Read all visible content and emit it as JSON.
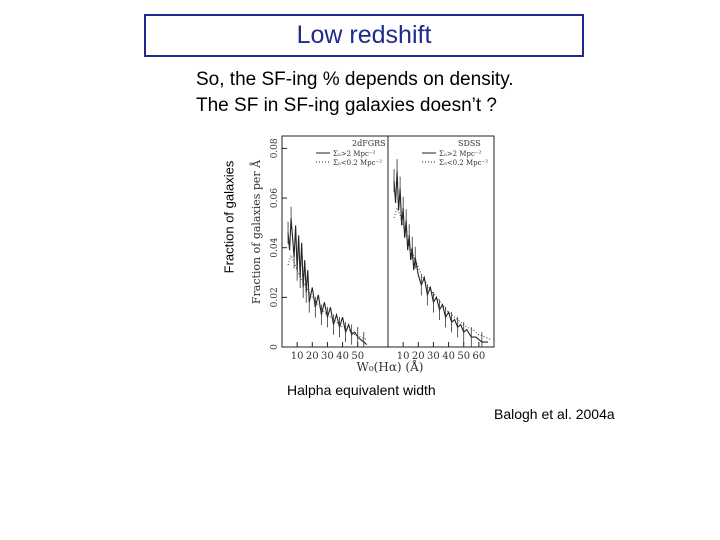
{
  "slide": {
    "title": "Low redshift",
    "subtitle_line1": "So, the SF-ing % depends on density.",
    "subtitle_line2": "The SF in SF-ing galaxies doesn’t ?",
    "y_axis_label": "Fraction of galaxies",
    "x_axis_label": "Halpha equivalent width",
    "citation": "Balogh et al. 2004a",
    "title_color": "#1e2a8c"
  },
  "chart_data": [
    {
      "type": "line",
      "title": "2dFGRS",
      "xlabel": "W₀(Hα) (Å)",
      "ylabel": "Fraction of galaxies per Å",
      "xlim": [
        0,
        70
      ],
      "ylim": [
        0,
        0.085
      ],
      "x_ticks": [
        10,
        20,
        30,
        40,
        50
      ],
      "y_ticks": [
        0,
        0.02,
        0.04,
        0.06,
        0.08
      ],
      "y_tick_labels": [
        "0",
        "0.02",
        "0.04",
        "0.06",
        "0.08"
      ],
      "legend": [
        "Σ₅>2 Mpc⁻²",
        "Σ₅<0.2 Mpc⁻²"
      ],
      "legend_position": "top",
      "series": [
        {
          "name": "Σ₅>2 Mpc⁻²",
          "style": "solid",
          "x": [
            4,
            5,
            6,
            7,
            8,
            9,
            10,
            11,
            12,
            13,
            14,
            15,
            16,
            17,
            18,
            20,
            22,
            24,
            26,
            28,
            30,
            32,
            34,
            36,
            38,
            40,
            42,
            44,
            46,
            48,
            50,
            52,
            54,
            56
          ],
          "y": [
            0.046,
            0.039,
            0.052,
            0.044,
            0.036,
            0.049,
            0.031,
            0.045,
            0.028,
            0.042,
            0.024,
            0.035,
            0.022,
            0.031,
            0.018,
            0.024,
            0.016,
            0.021,
            0.013,
            0.018,
            0.012,
            0.016,
            0.009,
            0.013,
            0.008,
            0.012,
            0.006,
            0.009,
            0.005,
            0.006,
            0.004,
            0.003,
            0.002,
            0.001
          ]
        },
        {
          "name": "Σ₅<0.2 Mpc⁻²",
          "style": "dotted",
          "x": [
            4,
            6,
            8,
            10,
            12,
            14,
            16,
            18,
            20,
            24,
            28,
            32,
            36,
            40,
            44,
            48,
            52,
            56
          ],
          "y": [
            0.033,
            0.037,
            0.034,
            0.031,
            0.028,
            0.026,
            0.024,
            0.022,
            0.02,
            0.017,
            0.014,
            0.012,
            0.01,
            0.008,
            0.007,
            0.005,
            0.004,
            0.003
          ]
        }
      ]
    },
    {
      "type": "line",
      "title": "SDSS",
      "xlabel": "W₀(Hα) (Å)",
      "xlim": [
        0,
        70
      ],
      "ylim": [
        0,
        0.085
      ],
      "x_ticks": [
        10,
        20,
        30,
        40,
        50,
        60
      ],
      "legend": [
        "Σ₅>2 Mpc⁻²",
        "Σ₅<0.2 Mpc⁻²"
      ],
      "legend_position": "top",
      "series": [
        {
          "name": "Σ₅>2 Mpc⁻²",
          "style": "solid",
          "x": [
            4,
            5,
            6,
            7,
            8,
            9,
            10,
            11,
            12,
            13,
            14,
            15,
            16,
            17,
            18,
            20,
            22,
            24,
            26,
            28,
            30,
            32,
            34,
            36,
            38,
            40,
            42,
            44,
            46,
            48,
            50,
            52,
            55,
            58,
            62,
            66
          ],
          "y": [
            0.067,
            0.058,
            0.071,
            0.055,
            0.064,
            0.049,
            0.056,
            0.044,
            0.051,
            0.039,
            0.045,
            0.035,
            0.04,
            0.031,
            0.036,
            0.029,
            0.025,
            0.028,
            0.021,
            0.024,
            0.018,
            0.02,
            0.015,
            0.017,
            0.012,
            0.014,
            0.01,
            0.011,
            0.008,
            0.009,
            0.006,
            0.007,
            0.004,
            0.004,
            0.002,
            0.002
          ]
        },
        {
          "name": "Σ₅<0.2 Mpc⁻²",
          "style": "dotted",
          "x": [
            4,
            6,
            8,
            10,
            12,
            14,
            16,
            18,
            20,
            24,
            28,
            32,
            36,
            40,
            44,
            48,
            52,
            56,
            60,
            64,
            68
          ],
          "y": [
            0.052,
            0.056,
            0.053,
            0.049,
            0.045,
            0.041,
            0.038,
            0.035,
            0.032,
            0.027,
            0.023,
            0.02,
            0.017,
            0.014,
            0.012,
            0.01,
            0.008,
            0.007,
            0.005,
            0.004,
            0.003
          ]
        }
      ]
    }
  ]
}
